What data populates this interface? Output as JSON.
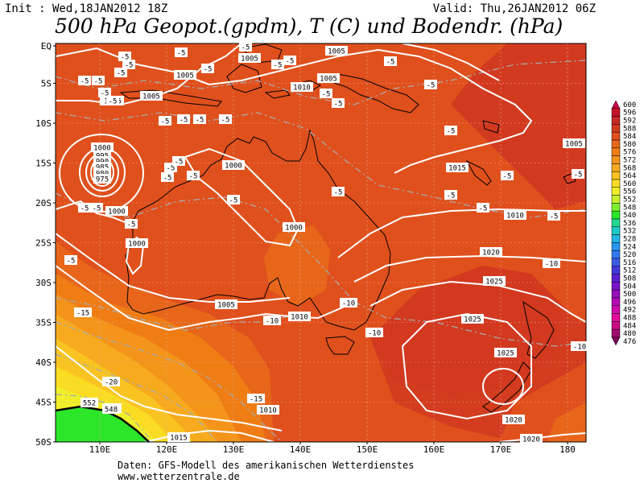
{
  "header": {
    "init": "Init : Wed,18JAN2012 18Z",
    "valid": "Valid: Thu,26JAN2012 06Z",
    "title": "500 hPa Geopot.(gpdm), T (C) und Bodendr. (hPa)"
  },
  "footer": {
    "line1": "Daten: GFS-Modell des amerikanischen Wetterdienstes",
    "line2": "www.wetterzentrale.de"
  },
  "axes": {
    "lat_labels": [
      "EQ",
      "5S",
      "10S",
      "15S",
      "20S",
      "25S",
      "30S",
      "35S",
      "40S",
      "45S",
      "50S"
    ],
    "lon_labels": [
      "110E",
      "120E",
      "130E",
      "140E",
      "150E",
      "160E",
      "170E",
      "180"
    ]
  },
  "legend": {
    "values": [
      "600",
      "596",
      "592",
      "588",
      "584",
      "580",
      "576",
      "572",
      "568",
      "564",
      "560",
      "556",
      "552",
      "548",
      "540",
      "536",
      "532",
      "528",
      "524",
      "520",
      "516",
      "512",
      "508",
      "504",
      "500",
      "496",
      "492",
      "488",
      "484",
      "480",
      "476"
    ],
    "colors": [
      "#c8004a",
      "#c8102c",
      "#c82828",
      "#d23a1f",
      "#e0501c",
      "#e8661a",
      "#ef7d14",
      "#f4941a",
      "#f7aa1e",
      "#f9c421",
      "#fadc23",
      "#f0ef2a",
      "#c8f02a",
      "#7ef02a",
      "#2ce62a",
      "#20d890",
      "#1ec8c8",
      "#1eb4e6",
      "#2896f0",
      "#3278f0",
      "#3c5ae6",
      "#4636dc",
      "#5a1ed2",
      "#7814c8",
      "#9610be",
      "#b40ab4",
      "#d20aaa",
      "#e60a9a",
      "#c80a86",
      "#a00a6e",
      "#7a0a56"
    ]
  },
  "pressure_labels": [
    "1005",
    "1005",
    "1005",
    "1005",
    "1005",
    "1005",
    "1005",
    "1000",
    "995",
    "990",
    "985",
    "980",
    "975",
    "1000",
    "1000",
    "1000",
    "1000",
    "1005",
    "1010",
    "1010",
    "1015",
    "1020",
    "1025",
    "1025",
    "1025",
    "1020",
    "1015",
    "1020",
    "1010",
    "1005",
    "1005",
    "1010"
  ],
  "temp_labels": [
    "-5",
    "-5",
    "-5",
    "-5",
    "-5",
    "-5",
    "-5",
    "-5",
    "-5",
    "-5",
    "-5",
    "-5",
    "-5",
    "-5",
    "-5",
    "-5",
    "-5",
    "-5",
    "-5",
    "-5",
    "-5",
    "-5",
    "-5",
    "-5",
    "-5",
    "-5",
    "-5",
    "-5",
    "-5",
    "-5",
    "-5",
    "-5",
    "-5",
    "-10",
    "-10",
    "-10",
    "-10",
    "-15",
    "-15",
    "-20",
    "-25",
    "-10",
    "-5",
    "-5",
    "-5"
  ],
  "geopot_labels": [
    "552",
    "548"
  ]
}
